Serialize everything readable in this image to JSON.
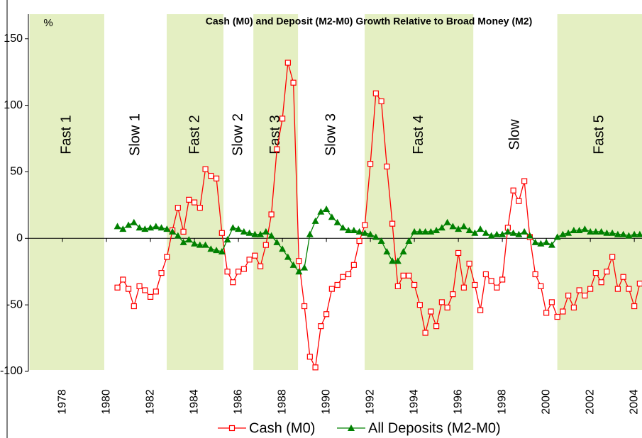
{
  "chart_data": {
    "type": "line",
    "title": "Cash (M0) and Deposit (M2-M0) Growth Relative to Broad Money (M2)",
    "y_label": "%",
    "x": [
      1980.5,
      1980.75,
      1981,
      1981.25,
      1981.5,
      1981.75,
      1982,
      1982.25,
      1982.5,
      1982.75,
      1983,
      1983.25,
      1983.5,
      1983.75,
      1984,
      1984.25,
      1984.5,
      1984.75,
      1985,
      1985.25,
      1985.5,
      1985.75,
      1986,
      1986.25,
      1986.5,
      1986.75,
      1987,
      1987.25,
      1987.5,
      1987.75,
      1988,
      1988.25,
      1988.5,
      1988.75,
      1989,
      1989.25,
      1989.5,
      1989.75,
      1990,
      1990.25,
      1990.5,
      1990.75,
      1991,
      1991.25,
      1991.5,
      1991.75,
      1992,
      1992.25,
      1992.5,
      1992.75,
      1993,
      1993.25,
      1993.5,
      1993.75,
      1994,
      1994.25,
      1994.5,
      1994.75,
      1995,
      1995.25,
      1995.5,
      1995.75,
      1996,
      1996.25,
      1996.5,
      1996.75,
      1997,
      1997.25,
      1997.5,
      1997.75,
      1998,
      1998.25,
      1998.5,
      1998.75,
      1999,
      1999.25,
      1999.5,
      1999.75,
      2000,
      2000.25,
      2000.5,
      2000.75,
      2001,
      2001.25,
      2001.5,
      2001.75,
      2002,
      2002.25,
      2002.5,
      2002.75,
      2003,
      2003.25,
      2003.5,
      2003.75,
      2004,
      2004.25
    ],
    "series": [
      {
        "name": "Cash (M0)",
        "color": "#ff0000",
        "marker": "square",
        "values": [
          -37,
          -31,
          -38,
          -51,
          -36,
          -39,
          -44,
          -40,
          -26,
          -14,
          6,
          23,
          5,
          29,
          27,
          23,
          52,
          47,
          45,
          4,
          -25,
          -33,
          -25,
          -23,
          -16,
          -13,
          -21,
          -5,
          18,
          67,
          90,
          132,
          117,
          -17,
          -51,
          -89,
          -97,
          -66,
          -57,
          -38,
          -35,
          -29,
          -27,
          -20,
          -2,
          10,
          56,
          109,
          103,
          54,
          11,
          -36,
          -28,
          -28,
          -35,
          -50,
          -71,
          -55,
          -66,
          -48,
          -52,
          -42,
          -11,
          -37,
          -19,
          -35,
          -54,
          -27,
          -32,
          -37,
          -31,
          8,
          36,
          28,
          43,
          1,
          -27,
          -36,
          -56,
          -48,
          -59,
          -55,
          -43,
          -52,
          -39,
          -43,
          -38,
          -26,
          -33,
          -25,
          -14,
          -38,
          -29,
          -38,
          -51,
          -34
        ]
      },
      {
        "name": "All Deposits (M2-M0)",
        "color": "#008000",
        "marker": "triangle",
        "values": [
          9,
          7,
          10,
          12,
          8,
          7,
          8,
          9,
          8,
          7,
          5,
          2,
          -3,
          -1,
          -4,
          -5,
          -5,
          -8,
          -9,
          -10,
          -1,
          8,
          7,
          5,
          4,
          3,
          3,
          5,
          2,
          -3,
          -8,
          -14,
          -20,
          -25,
          -22,
          3,
          13,
          20,
          22,
          16,
          12,
          8,
          6,
          6,
          5,
          4,
          3,
          1,
          -2,
          -10,
          -17,
          -17,
          -10,
          -2,
          5,
          5,
          5,
          5,
          6,
          8,
          12,
          9,
          7,
          9,
          6,
          4,
          7,
          4,
          2,
          3,
          3,
          5,
          4,
          3,
          5,
          2,
          -3,
          -4,
          -3,
          -5,
          1,
          3,
          4,
          6,
          6,
          7,
          5,
          5,
          5,
          4,
          4,
          3,
          3,
          2,
          3,
          3
        ]
      }
    ],
    "periods": [
      {
        "label": "Fast 1",
        "start": 1976.5,
        "end": 1979.9,
        "shaded": true
      },
      {
        "label": "Slow 1",
        "start": 1979.9,
        "end": 1982.74,
        "shaded": false
      },
      {
        "label": "Fast 2",
        "start": 1982.74,
        "end": 1985.32,
        "shaded": true
      },
      {
        "label": "Slow 2",
        "start": 1985.32,
        "end": 1986.68,
        "shaded": false
      },
      {
        "label": "Fast 3",
        "start": 1986.68,
        "end": 1988.71,
        "shaded": true
      },
      {
        "label": "Slow 3",
        "start": 1988.71,
        "end": 1991.74,
        "shaded": false
      },
      {
        "label": "Fast 4",
        "start": 1991.74,
        "end": 1996.68,
        "shaded": true
      },
      {
        "label": "Slow",
        "start": 1996.68,
        "end": 2000.5,
        "shaded": false
      },
      {
        "label": "Fast 5",
        "start": 2000.5,
        "end": 2004.35,
        "shaded": true
      }
    ],
    "band_color": "#e4efc2",
    "xlim": [
      1976.45,
      2004.35
    ],
    "xticks": [
      1978,
      1980,
      1982,
      1984,
      1986,
      1988,
      1990,
      1992,
      1994,
      1996,
      1998,
      2000,
      2002,
      2004
    ],
    "ylim": [
      -100,
      168.5
    ],
    "yticks": [
      -100,
      -50,
      0,
      50,
      100,
      150
    ],
    "grid": false,
    "legend": "bottom"
  }
}
